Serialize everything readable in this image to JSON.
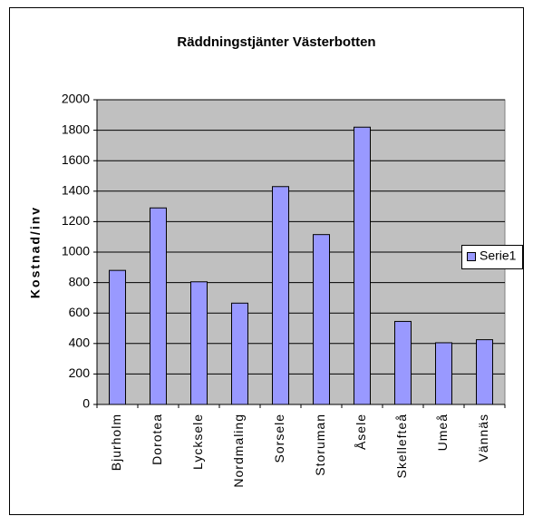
{
  "chart_data": {
    "type": "bar",
    "title": "Räddningstjänter Västerbotten",
    "ylabel": "Kostnad/inv",
    "categories": [
      "Bjurholm",
      "Dorotea",
      "Lycksele",
      "Nordmaling",
      "Sorsele",
      "Storuman",
      "Åsele",
      "Skellefteå",
      "Umeå",
      "Vännäs"
    ],
    "series": [
      {
        "name": "Serie1",
        "color": "#9999ff",
        "values": [
          880,
          1290,
          805,
          665,
          1430,
          1115,
          1820,
          545,
          405,
          425
        ]
      }
    ],
    "ylim": [
      0,
      2000
    ],
    "yticks": [
      0,
      200,
      400,
      600,
      800,
      1000,
      1200,
      1400,
      1600,
      1800,
      2000
    ],
    "grid": true,
    "legend": "right"
  }
}
